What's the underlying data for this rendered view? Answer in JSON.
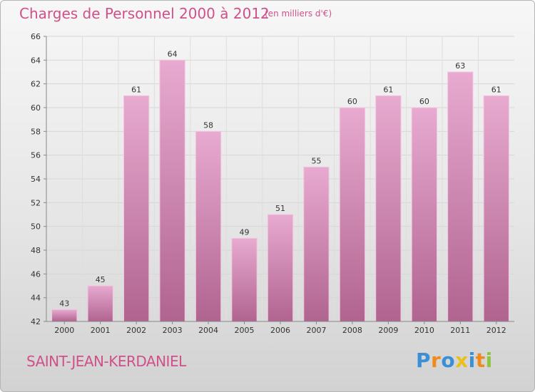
{
  "header": {
    "title": "Charges de Personnel 2000 à 2012",
    "subtitle": "(en milliers d'€)"
  },
  "footer": {
    "place": "SAINT-JEAN-KERDANIEL",
    "logo_letters": [
      "P",
      "r",
      "o",
      "x",
      "i",
      "t",
      "i"
    ],
    "logo_colors": [
      "#3a8fd6",
      "#f08a1c",
      "#3a8fd6",
      "#e8c21c",
      "#3a8fd6",
      "#f08a1c",
      "#8cc63f"
    ]
  },
  "chart_data": {
    "type": "bar",
    "categories": [
      "2000",
      "2001",
      "2002",
      "2003",
      "2004",
      "2005",
      "2006",
      "2007",
      "2008",
      "2009",
      "2010",
      "2011",
      "2012"
    ],
    "values": [
      43,
      45,
      61,
      64,
      58,
      49,
      51,
      55,
      60,
      61,
      60,
      63,
      61
    ],
    "ylim": [
      42,
      66
    ],
    "yticks": [
      42,
      44,
      46,
      48,
      50,
      52,
      54,
      56,
      58,
      60,
      62,
      64,
      66
    ],
    "data_labels": true,
    "grid": true,
    "bar_color": "#c97aa6",
    "bar_color_light": "#e2a6c8"
  }
}
